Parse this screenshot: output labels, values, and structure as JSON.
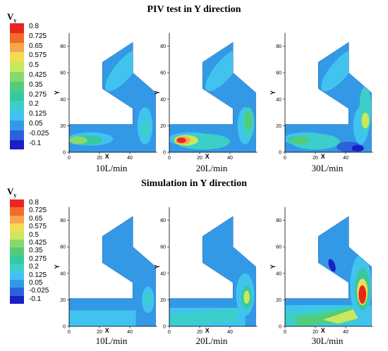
{
  "top_title": "PIV test in Y direction",
  "bottom_title": "Simulation in Y direction",
  "legend": {
    "title": "V",
    "title_sub": "y",
    "levels": [
      {
        "label": "0.8",
        "color": "#e8261e"
      },
      {
        "label": "0.725",
        "color": "#f26b2a"
      },
      {
        "label": "0.65",
        "color": "#f7a64c"
      },
      {
        "label": "0.575",
        "color": "#f3dc55"
      },
      {
        "label": "0.5",
        "color": "#c9e85b"
      },
      {
        "label": "0.425",
        "color": "#88d96b"
      },
      {
        "label": "0.35",
        "color": "#52cc7a"
      },
      {
        "label": "0.275",
        "color": "#37c99d"
      },
      {
        "label": "0.2",
        "color": "#3ccfc9"
      },
      {
        "label": "0.125",
        "color": "#41c3f0"
      },
      {
        "label": "0.05",
        "color": "#3399e6"
      },
      {
        "label": "-0.025",
        "color": "#2b62d9"
      },
      {
        "label": "-0.1",
        "color": "#1a1fc7"
      }
    ]
  },
  "axes": {
    "x_label": "X",
    "y_label": "Y",
    "x_ticks": [
      "0",
      "20",
      "40"
    ],
    "y_ticks": [
      "0",
      "20",
      "40",
      "60",
      "80"
    ]
  },
  "panels_top": [
    {
      "caption": "10L/min"
    },
    {
      "caption": "20L/min"
    },
    {
      "caption": "30L/min"
    }
  ],
  "panels_bottom": [
    {
      "caption": "10L/min"
    },
    {
      "caption": "20L/min"
    },
    {
      "caption": "30L/min"
    }
  ]
}
